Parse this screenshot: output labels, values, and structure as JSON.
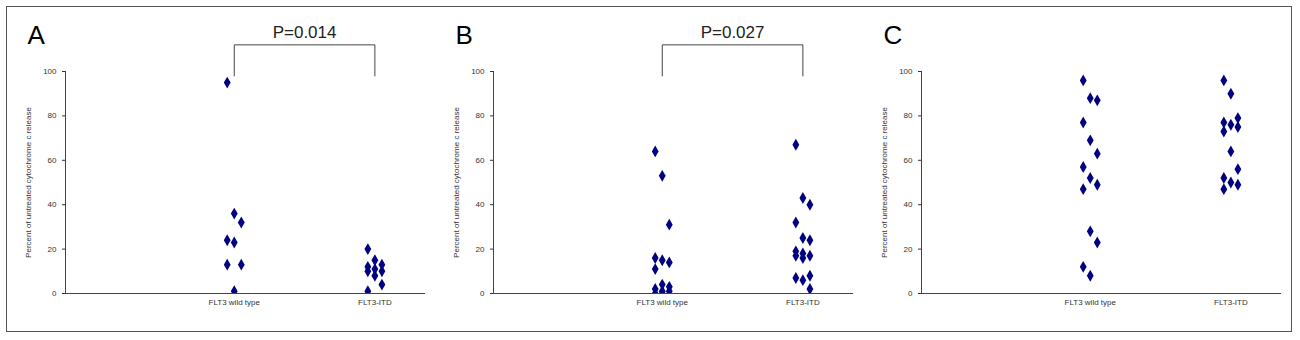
{
  "chart_data": [
    {
      "type": "scatter",
      "title": "A",
      "annotation": "P=0.014",
      "categories": [
        "FLT3 wild type",
        "FLT3-ITD"
      ],
      "values": [
        [
          95,
          36,
          32,
          24,
          23,
          13,
          13,
          1
        ],
        [
          20,
          15,
          13,
          12,
          11,
          10,
          10,
          8,
          4,
          1
        ]
      ],
      "y_label": "Percent of untreated cytochrome c release",
      "ylim": [
        0,
        100
      ],
      "yticks": [
        0,
        20,
        40,
        60,
        80,
        100
      ],
      "color": "#000080",
      "marker": "diamond"
    },
    {
      "type": "scatter",
      "title": "B",
      "annotation": "P=0.027",
      "categories": [
        "FLT3 wild type",
        "FLT3-ITD"
      ],
      "values": [
        [
          64,
          53,
          31,
          16,
          15,
          14,
          11,
          4,
          3,
          2,
          1,
          1,
          0,
          0
        ],
        [
          67,
          43,
          40,
          32,
          25,
          24,
          19,
          18,
          17,
          17,
          16,
          8,
          7,
          6,
          2
        ]
      ],
      "y_label": "Percent of untreated cytochrome c release",
      "ylim": [
        0,
        100
      ],
      "yticks": [
        0,
        20,
        40,
        60,
        80,
        100
      ],
      "color": "#000080",
      "marker": "diamond"
    },
    {
      "type": "scatter",
      "title": "C",
      "categories": [
        "FLT3 wild type",
        "FLT3-ITD"
      ],
      "values": [
        [
          96,
          88,
          87,
          77,
          69,
          63,
          57,
          52,
          49,
          47,
          28,
          23,
          12,
          8
        ],
        [
          96,
          90,
          79,
          77,
          76,
          75,
          73,
          64,
          56,
          52,
          50,
          49,
          47
        ]
      ],
      "y_label": "Percent of untreated cytochrome c release",
      "ylim": [
        0,
        100
      ],
      "yticks": [
        0,
        20,
        40,
        60,
        80,
        100
      ],
      "color": "#000080",
      "marker": "diamond"
    }
  ]
}
